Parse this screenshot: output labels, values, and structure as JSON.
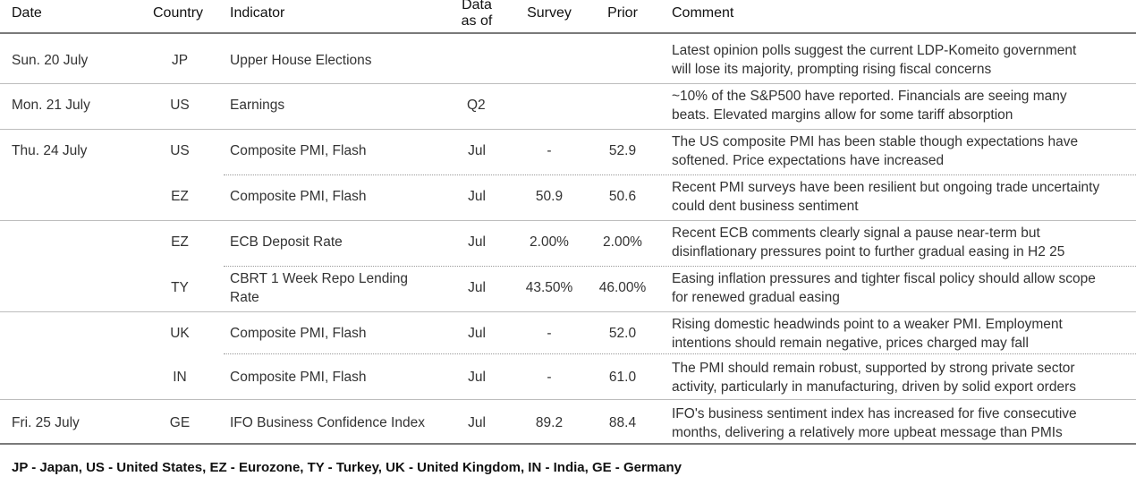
{
  "header": {
    "date": "Date",
    "country": "Country",
    "indicator": "Indicator",
    "data_as_of_line1": "Data",
    "data_as_of_line2": "as of",
    "survey": "Survey",
    "prior": "Prior",
    "comment": "Comment"
  },
  "rows": [
    {
      "date": "Sun. 20 July",
      "country": "JP",
      "indicator": "Upper House Elections",
      "data_as_of": "",
      "survey": "",
      "prior": "",
      "comment_line1": "Latest opinion polls suggest the current LDP-Komeito government",
      "comment_line2": "will lose its majority, prompting rising fiscal concerns"
    },
    {
      "date": "Mon. 21 July",
      "country": "US",
      "indicator": "Earnings",
      "data_as_of": "Q2",
      "survey": "",
      "prior": "",
      "comment_line1": "~10% of the S&P500 have reported. Financials are seeing many",
      "comment_line2": "beats. Elevated margins allow for some tariff absorption"
    },
    {
      "date": "Thu. 24 July",
      "country": "US",
      "indicator": "Composite PMI, Flash",
      "data_as_of": "Jul",
      "survey": "-",
      "prior": "52.9",
      "comment_line1": "The US composite PMI has been stable though expectations have",
      "comment_line2": "softened. Price expectations have increased"
    },
    {
      "date": "",
      "country": "EZ",
      "indicator": "Composite PMI, Flash",
      "data_as_of": "Jul",
      "survey": "50.9",
      "prior": "50.6",
      "comment_line1": "Recent PMI surveys have been resilient but ongoing trade uncertainty",
      "comment_line2": "could dent business sentiment"
    },
    {
      "date": "",
      "country": "EZ",
      "indicator": "ECB Deposit Rate",
      "data_as_of": "Jul",
      "survey": "2.00%",
      "prior": "2.00%",
      "comment_line1": "Recent ECB comments clearly signal a pause near-term but",
      "comment_line2": "disinflationary pressures point to further gradual easing in H2 25"
    },
    {
      "date": "",
      "country": "TY",
      "indicator": "CBRT 1 Week Repo Lending",
      "indicator_line2": "Rate",
      "data_as_of": "Jul",
      "survey": "43.50%",
      "prior": "46.00%",
      "comment_line1": "Easing inflation pressures and tighter fiscal policy should allow scope",
      "comment_line2": "for renewed gradual easing"
    },
    {
      "date": "",
      "country": "UK",
      "indicator": "Composite PMI, Flash",
      "data_as_of": "Jul",
      "survey": "-",
      "prior": "52.0",
      "comment_line1": "Rising domestic headwinds point to a weaker PMI. Employment",
      "comment_line2": "intentions should remain negative, prices charged may fall"
    },
    {
      "date": "",
      "country": "IN",
      "indicator": "Composite PMI, Flash",
      "data_as_of": "Jul",
      "survey": "-",
      "prior": "61.0",
      "comment_line1": "The PMI should remain robust, supported by strong private sector",
      "comment_line2": "activity, particularly in manufacturing, driven by solid export orders"
    },
    {
      "date": "Fri. 25 July",
      "country": "GE",
      "indicator": "IFO Business Confidence Index",
      "data_as_of": "Jul",
      "survey": "89.2",
      "prior": "88.4",
      "comment_line1": "IFO's business sentiment index has increased for five consecutive",
      "comment_line2": "months, delivering a relatively more upbeat message than PMIs"
    }
  ],
  "footnote": "JP - Japan, US - United States, EZ - Eurozone, TY - Turkey, UK - United Kingdom, IN - India, GE - Germany"
}
